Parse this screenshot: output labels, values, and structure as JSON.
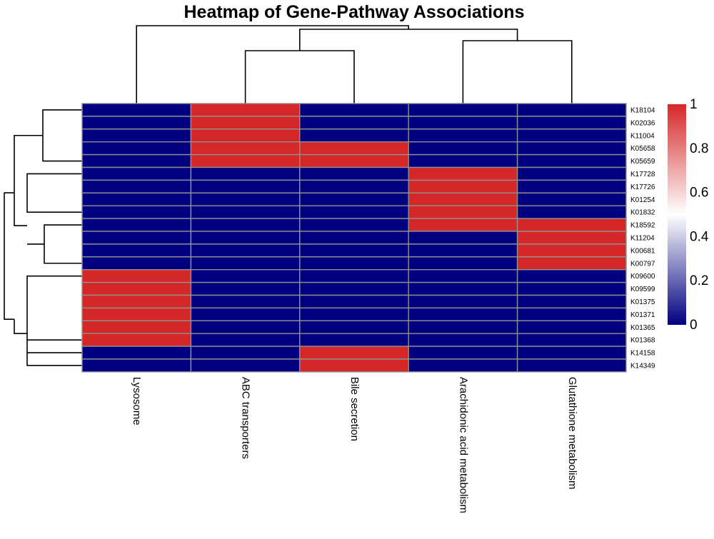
{
  "chart_data": {
    "type": "heatmap",
    "title": "Heatmap of Gene-Pathway Associations",
    "columns": [
      "Lysosome",
      "ABC transporters",
      "Bile secretion",
      "Arachidonic acid metabolism",
      "Glutathione metabolism"
    ],
    "rows": [
      "K18104",
      "K02036",
      "K11004",
      "K05658",
      "K05659",
      "K17728",
      "K17726",
      "K01254",
      "K01832",
      "K18592",
      "K11204",
      "K00681",
      "K00797",
      "K09600",
      "K09599",
      "K01375",
      "K01371",
      "K01365",
      "K01368",
      "K14158",
      "K14349"
    ],
    "values": [
      [
        0,
        1,
        0,
        0,
        0
      ],
      [
        0,
        1,
        0,
        0,
        0
      ],
      [
        0,
        1,
        0,
        0,
        0
      ],
      [
        0,
        1,
        1,
        0,
        0
      ],
      [
        0,
        1,
        1,
        0,
        0
      ],
      [
        0,
        0,
        0,
        1,
        0
      ],
      [
        0,
        0,
        0,
        1,
        0
      ],
      [
        0,
        0,
        0,
        1,
        0
      ],
      [
        0,
        0,
        0,
        1,
        0
      ],
      [
        0,
        0,
        0,
        1,
        1
      ],
      [
        0,
        0,
        0,
        0,
        1
      ],
      [
        0,
        0,
        0,
        0,
        1
      ],
      [
        0,
        0,
        0,
        0,
        1
      ],
      [
        1,
        0,
        0,
        0,
        0
      ],
      [
        1,
        0,
        0,
        0,
        0
      ],
      [
        1,
        0,
        0,
        0,
        0
      ],
      [
        1,
        0,
        0,
        0,
        0
      ],
      [
        1,
        0,
        0,
        0,
        0
      ],
      [
        1,
        0,
        0,
        0,
        0
      ],
      [
        0,
        0,
        1,
        0,
        0
      ],
      [
        0,
        0,
        1,
        0,
        0
      ]
    ],
    "color_scale": {
      "low": "#000080",
      "mid": "#ffffff",
      "high": "#d62728",
      "min": 0,
      "max": 1
    },
    "legend": {
      "ticks": [
        "1",
        "0.8",
        "0.6",
        "0.4",
        "0.2",
        "0"
      ],
      "placement": "right"
    },
    "cell_border_color": "#909090",
    "dendrograms": [
      "top",
      "left"
    ]
  }
}
